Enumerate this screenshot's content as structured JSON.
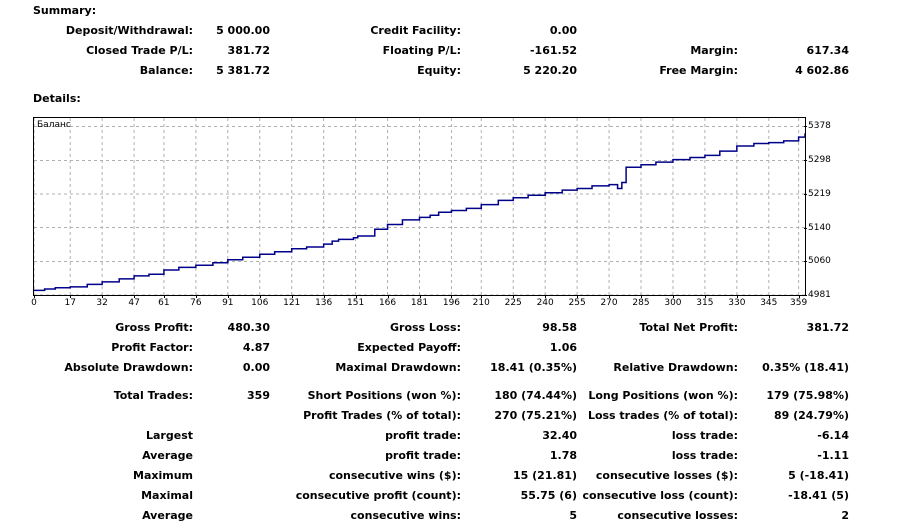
{
  "sections": {
    "summary": "Summary:",
    "details": "Details:"
  },
  "summary": {
    "deposit_label": "Deposit/Withdrawal:",
    "deposit_value": "5 000.00",
    "credit_label": "Credit Facility:",
    "credit_value": "0.00",
    "closed_label": "Closed Trade P/L:",
    "closed_value": "381.72",
    "floating_label": "Floating P/L:",
    "floating_value": "-161.52",
    "margin_label": "Margin:",
    "margin_value": "617.34",
    "balance_label": "Balance:",
    "balance_value": "5 381.72",
    "equity_label": "Equity:",
    "equity_value": "5 220.20",
    "free_margin_label": "Free Margin:",
    "free_margin_value": "4 602.86"
  },
  "chart_data": {
    "type": "line",
    "title": "Баланс",
    "y_ticks": [
      "5378",
      "5298",
      "5219",
      "5140",
      "5060",
      "4981"
    ],
    "x_ticks": [
      "0",
      "17",
      "32",
      "47",
      "61",
      "76",
      "91",
      "106",
      "121",
      "136",
      "151",
      "166",
      "181",
      "196",
      "210",
      "225",
      "240",
      "255",
      "270",
      "285",
      "300",
      "315",
      "330",
      "345",
      "359"
    ],
    "ylim": [
      4981,
      5398
    ],
    "xlim": [
      0,
      362
    ],
    "grid": true,
    "line_color": "#00008b",
    "series": [
      {
        "x": [
          0,
          5,
          10,
          17,
          25,
          32,
          40,
          47,
          54,
          61,
          68,
          76,
          84,
          91,
          98,
          106,
          113,
          121,
          128,
          136,
          140,
          143,
          150,
          152,
          160,
          166,
          173,
          181,
          186,
          190,
          196,
          203,
          210,
          218,
          225,
          232,
          240,
          248,
          255,
          262,
          270,
          274,
          276,
          278,
          285,
          292,
          300,
          308,
          315,
          322,
          330,
          338,
          345,
          352,
          359,
          362
        ],
        "y": [
          4992,
          4995,
          4998,
          5000,
          5006,
          5012,
          5019,
          5026,
          5030,
          5040,
          5046,
          5051,
          5057,
          5064,
          5070,
          5077,
          5083,
          5090,
          5094,
          5101,
          5108,
          5112,
          5116,
          5120,
          5136,
          5147,
          5158,
          5164,
          5169,
          5176,
          5180,
          5185,
          5194,
          5204,
          5210,
          5216,
          5222,
          5228,
          5232,
          5238,
          5241,
          5232,
          5246,
          5282,
          5288,
          5294,
          5300,
          5305,
          5310,
          5320,
          5332,
          5338,
          5340,
          5344,
          5353,
          5362
        ]
      }
    ]
  },
  "stats": {
    "gross_profit_label": "Gross Profit:",
    "gross_profit_value": "480.30",
    "gross_loss_label": "Gross Loss:",
    "gross_loss_value": "98.58",
    "net_profit_label": "Total Net Profit:",
    "net_profit_value": "381.72",
    "profit_factor_label": "Profit Factor:",
    "profit_factor_value": "4.87",
    "expected_payoff_label": "Expected Payoff:",
    "expected_payoff_value": "1.06",
    "abs_drawdown_label": "Absolute Drawdown:",
    "abs_drawdown_value": "0.00",
    "max_drawdown_label": "Maximal Drawdown:",
    "max_drawdown_value": "18.41 (0.35%)",
    "rel_drawdown_label": "Relative Drawdown:",
    "rel_drawdown_value": "0.35% (18.41)",
    "total_trades_label": "Total Trades:",
    "total_trades_value": "359",
    "short_label": "Short Positions (won %):",
    "short_value": "180 (74.44%)",
    "long_label": "Long Positions (won %):",
    "long_value": "179 (75.98%)",
    "profit_trades_label": "Profit Trades (% of total):",
    "profit_trades_value": "270 (75.21%)",
    "loss_trades_label": "Loss trades (% of total):",
    "loss_trades_value": "89 (24.79%)",
    "largest_label": "Largest",
    "largest_profit_label": "profit trade:",
    "largest_profit_value": "32.40",
    "largest_loss_label": "loss trade:",
    "largest_loss_value": "-6.14",
    "average_label": "Average",
    "average_profit_label": "profit trade:",
    "average_profit_value": "1.78",
    "average_loss_label": "loss trade:",
    "average_loss_value": "-1.11",
    "maximum_label": "Maximum",
    "max_cons_wins_label": "consecutive wins ($):",
    "max_cons_wins_value": "15 (21.81)",
    "max_cons_losses_label": "consecutive losses ($):",
    "max_cons_losses_value": "5 (-18.41)",
    "maximal_label": "Maximal",
    "maximal_profit_label": "consecutive profit (count):",
    "maximal_profit_value": "55.75 (6)",
    "maximal_loss_label": "consecutive loss (count):",
    "maximal_loss_value": "-18.41 (5)",
    "avg_cons_label": "Average",
    "avg_cons_wins_label": "consecutive wins:",
    "avg_cons_wins_value": "5",
    "avg_cons_losses_label": "consecutive losses:",
    "avg_cons_losses_value": "2"
  }
}
